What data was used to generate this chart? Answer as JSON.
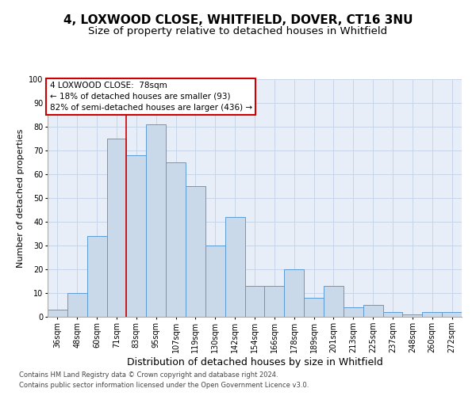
{
  "title1": "4, LOXWOOD CLOSE, WHITFIELD, DOVER, CT16 3NU",
  "title2": "Size of property relative to detached houses in Whitfield",
  "xlabel": "Distribution of detached houses by size in Whitfield",
  "ylabel": "Number of detached properties",
  "footnote1": "Contains HM Land Registry data © Crown copyright and database right 2024.",
  "footnote2": "Contains public sector information licensed under the Open Government Licence v3.0.",
  "categories": [
    "36sqm",
    "48sqm",
    "60sqm",
    "71sqm",
    "83sqm",
    "95sqm",
    "107sqm",
    "119sqm",
    "130sqm",
    "142sqm",
    "154sqm",
    "166sqm",
    "178sqm",
    "189sqm",
    "201sqm",
    "213sqm",
    "225sqm",
    "237sqm",
    "248sqm",
    "260sqm",
    "272sqm"
  ],
  "values": [
    3,
    10,
    34,
    75,
    68,
    81,
    65,
    55,
    30,
    42,
    13,
    13,
    20,
    8,
    13,
    4,
    5,
    2,
    1,
    2,
    2
  ],
  "bar_color": "#c9d9ea",
  "bar_edge_color": "#5b9bd5",
  "vline_color": "#cc0000",
  "annotation_text": "4 LOXWOOD CLOSE:  78sqm\n← 18% of detached houses are smaller (93)\n82% of semi-detached houses are larger (436) →",
  "annotation_box_color": "#ffffff",
  "annotation_border_color": "#cc0000",
  "ylim": [
    0,
    100
  ],
  "yticks": [
    0,
    10,
    20,
    30,
    40,
    50,
    60,
    70,
    80,
    90,
    100
  ],
  "grid_color": "#c8d4e8",
  "bg_color": "#e8eef8",
  "title1_fontsize": 11,
  "title2_fontsize": 9.5,
  "xlabel_fontsize": 9,
  "ylabel_fontsize": 8,
  "tick_fontsize": 7,
  "annotation_fontsize": 7.5,
  "footnote_fontsize": 6
}
